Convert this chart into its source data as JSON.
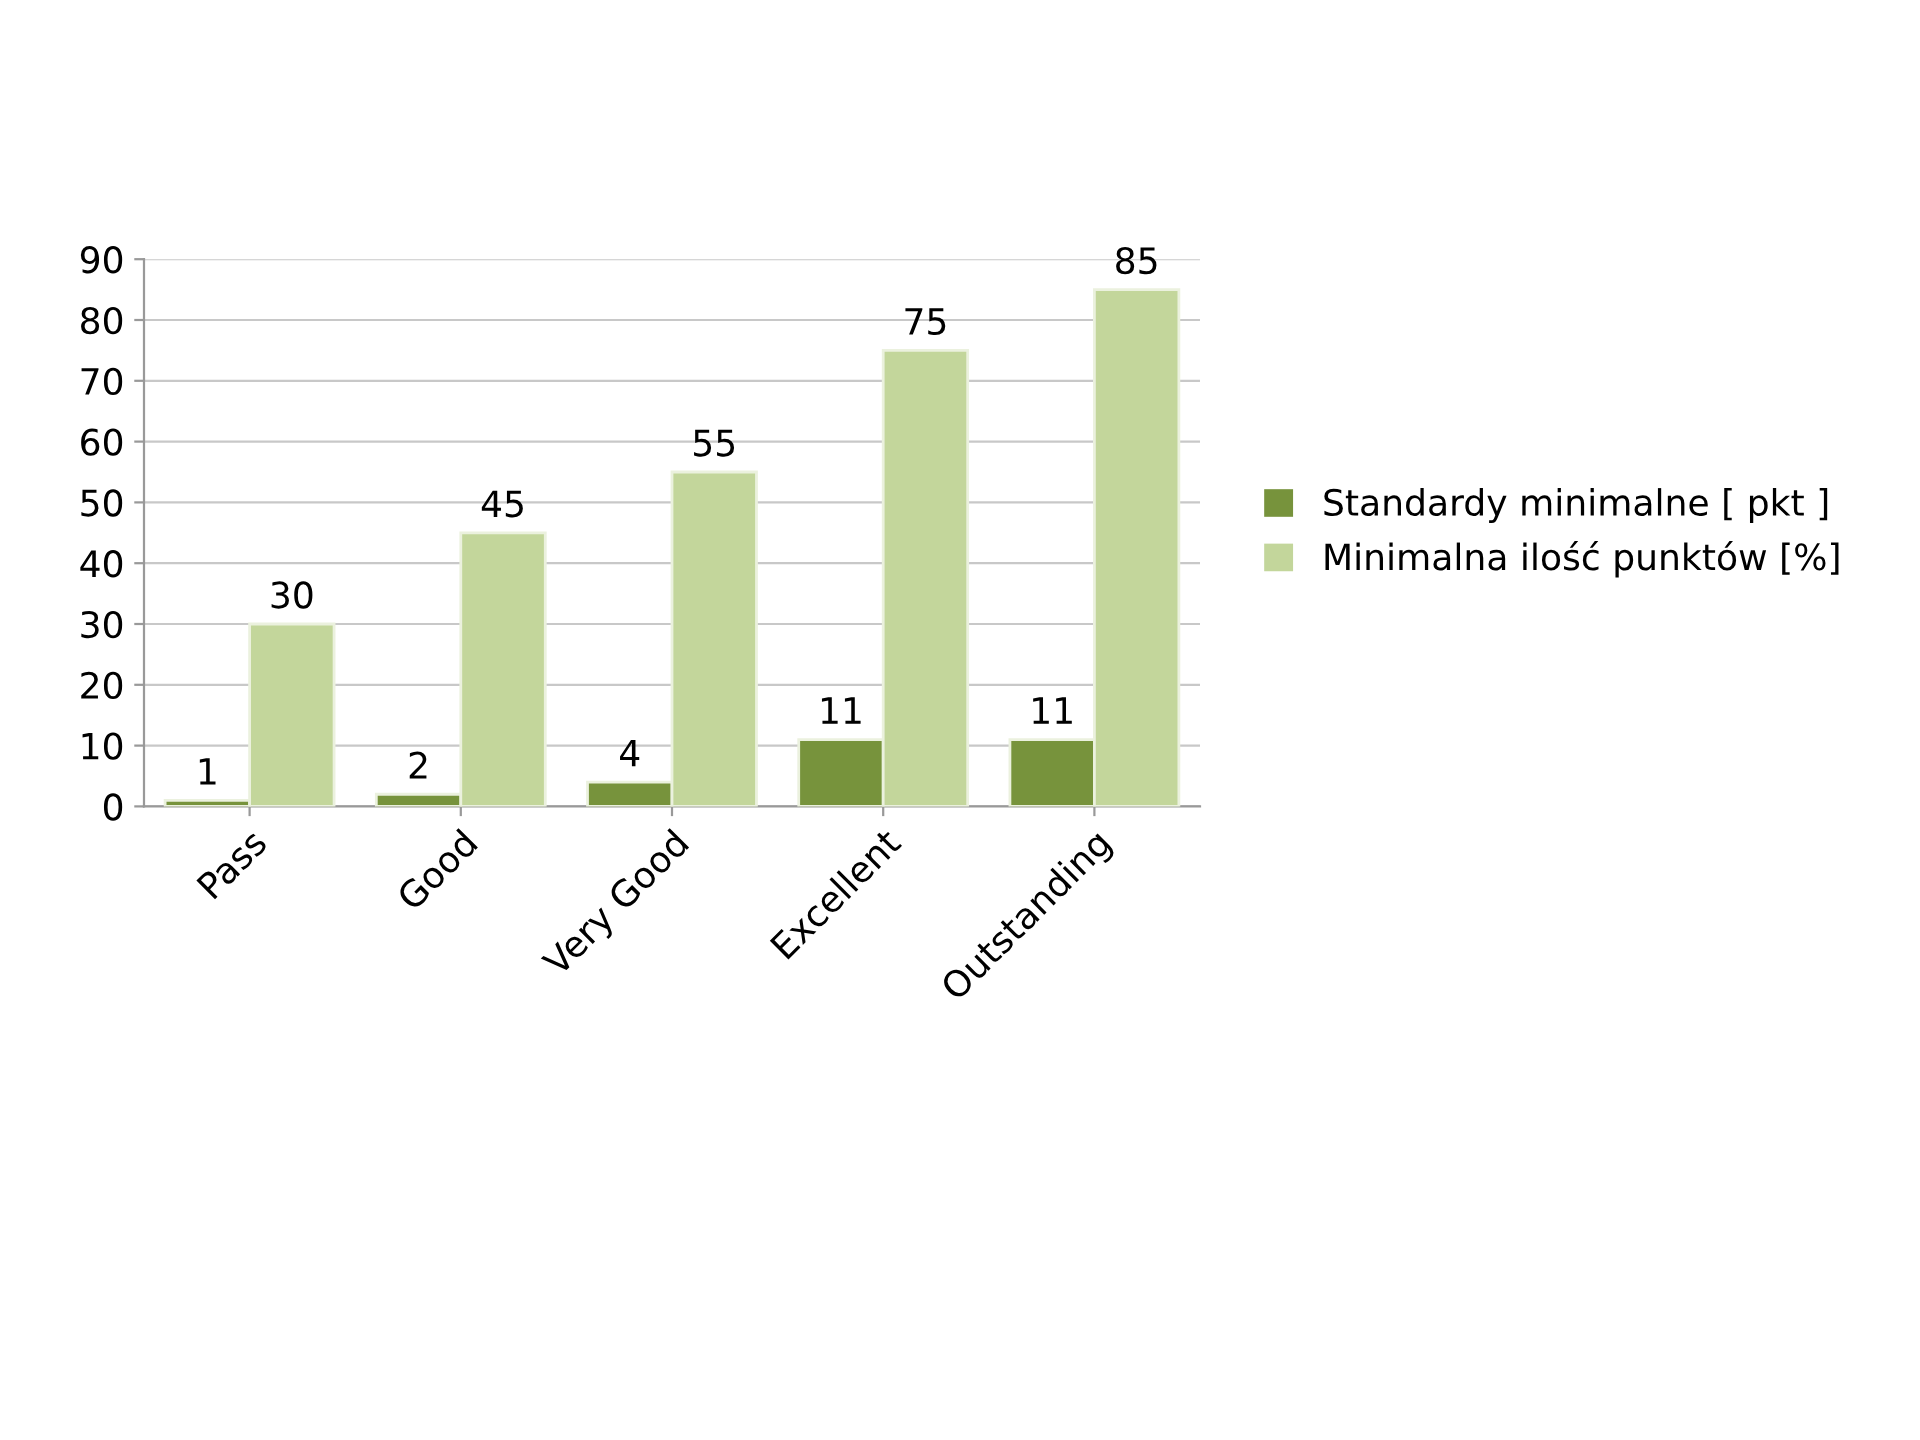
{
  "chart_data": {
    "type": "bar",
    "categories": [
      "Pass",
      "Good",
      "Very Good",
      "Excellent",
      "Outstanding"
    ],
    "series": [
      {
        "name": "Standardy minimalne [ pkt ]",
        "color": "#77933c",
        "values": [
          1,
          2,
          4,
          11,
          11
        ]
      },
      {
        "name": "Minimalna ilość punktów [%]",
        "color": "#c3d69b",
        "values": [
          30,
          45,
          55,
          75,
          85
        ]
      }
    ],
    "ylim": [
      0,
      90
    ],
    "yticks": [
      0,
      10,
      20,
      30,
      40,
      50,
      60,
      70,
      80,
      90
    ],
    "grid": "y",
    "legend": "right",
    "data_labels": true
  }
}
